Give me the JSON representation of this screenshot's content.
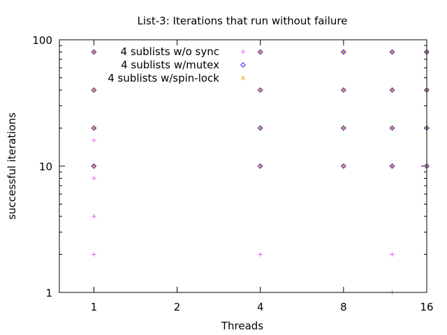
{
  "chart_data": {
    "type": "scatter",
    "title": "List-3: Iterations that run without failure",
    "xlabel": "Threads",
    "ylabel": "successful iterations",
    "x_scale": "log2",
    "y_scale": "log10",
    "xlim": [
      0.75,
      16
    ],
    "ylim": [
      1,
      100
    ],
    "x_ticks": [
      1,
      2,
      4,
      8,
      16
    ],
    "y_ticks": [
      1,
      10,
      100
    ],
    "legend_position": "top-left",
    "series": [
      {
        "name": "4 sublists w/o sync",
        "color": "#e066e0",
        "marker": "plus",
        "points": [
          [
            1,
            2
          ],
          [
            1,
            4
          ],
          [
            1,
            8
          ],
          [
            1,
            10
          ],
          [
            1,
            16
          ],
          [
            1,
            20
          ],
          [
            1,
            40
          ],
          [
            1,
            80
          ],
          [
            4,
            2
          ],
          [
            4,
            10
          ],
          [
            4,
            20
          ],
          [
            4,
            40
          ],
          [
            4,
            80
          ],
          [
            8,
            10
          ],
          [
            8,
            20
          ],
          [
            8,
            40
          ],
          [
            8,
            80
          ],
          [
            12,
            1
          ],
          [
            12,
            2
          ],
          [
            12,
            10
          ],
          [
            12,
            20
          ],
          [
            12,
            40
          ],
          [
            12,
            80
          ],
          [
            16,
            10
          ],
          [
            16,
            20
          ],
          [
            16,
            40
          ],
          [
            16,
            80
          ]
        ]
      },
      {
        "name": "4 sublists w/mutex",
        "color": "#1a1aff",
        "marker": "diamond",
        "points": [
          [
            1,
            10
          ],
          [
            1,
            20
          ],
          [
            1,
            40
          ],
          [
            1,
            80
          ],
          [
            4,
            10
          ],
          [
            4,
            20
          ],
          [
            4,
            40
          ],
          [
            4,
            80
          ],
          [
            8,
            10
          ],
          [
            8,
            20
          ],
          [
            8,
            40
          ],
          [
            8,
            80
          ],
          [
            12,
            10
          ],
          [
            12,
            20
          ],
          [
            12,
            40
          ],
          [
            12,
            80
          ],
          [
            16,
            10
          ],
          [
            16,
            20
          ],
          [
            16,
            40
          ],
          [
            16,
            80
          ]
        ]
      },
      {
        "name": "4 sublists w/spin-lock",
        "color": "#e0a000",
        "marker": "cross",
        "points": [
          [
            1,
            10
          ],
          [
            1,
            20
          ],
          [
            1,
            40
          ],
          [
            1,
            80
          ],
          [
            4,
            10
          ],
          [
            4,
            20
          ],
          [
            4,
            40
          ],
          [
            4,
            80
          ],
          [
            8,
            10
          ],
          [
            8,
            20
          ],
          [
            8,
            40
          ],
          [
            8,
            80
          ],
          [
            12,
            10
          ],
          [
            12,
            20
          ],
          [
            12,
            40
          ],
          [
            12,
            80
          ],
          [
            16,
            10
          ],
          [
            16,
            20
          ],
          [
            16,
            40
          ],
          [
            16,
            80
          ]
        ]
      }
    ]
  }
}
